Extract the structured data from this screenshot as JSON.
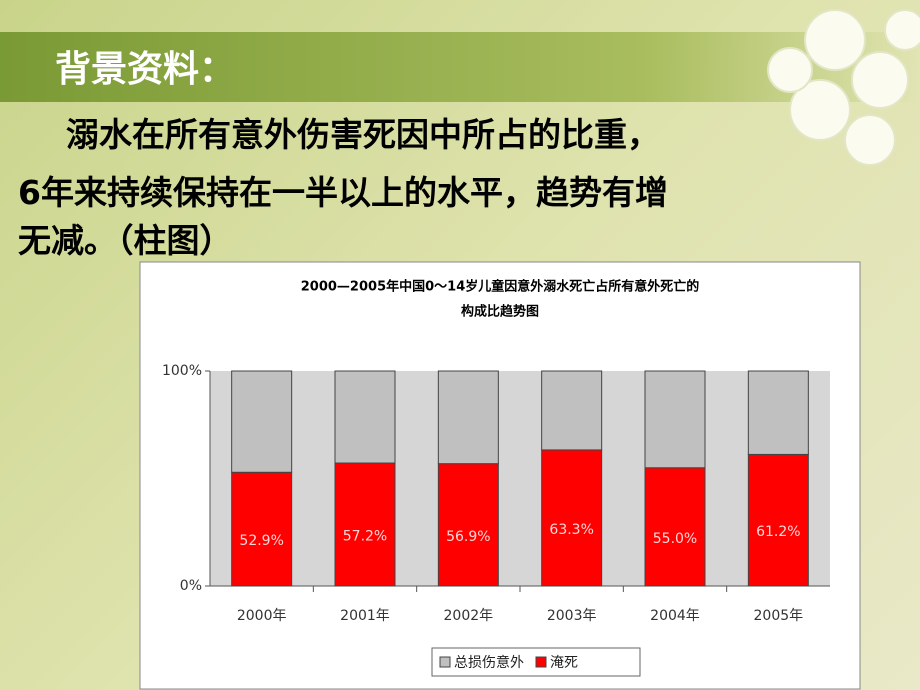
{
  "slide": {
    "heading": "背景资料：",
    "body": [
      "溺水在所有意外伤害死因中所占的比重，",
      "6年来持续保持在一半以上的水平，趋势有增",
      "无减。（柱图）"
    ]
  },
  "chart_data": {
    "type": "stacked-bar",
    "title": [
      "2000—2005年中国0～14岁儿童因意外溺水死亡占所有意外死亡的",
      "构成比趋势图"
    ],
    "categories": [
      "2000年",
      "2001年",
      "2002年",
      "2003年",
      "2004年",
      "2005年"
    ],
    "series": [
      {
        "name": "总损伤意外",
        "color": "#c0c0c0",
        "values": [
          47.1,
          42.8,
          43.1,
          36.7,
          45.0,
          38.8
        ]
      },
      {
        "name": "淹死",
        "color": "#ff0000",
        "values": [
          52.9,
          57.2,
          56.9,
          63.3,
          55.0,
          61.2
        ],
        "value_labels": [
          "52.9%",
          "57.2%",
          "56.9%",
          "63.3%",
          "55.0%",
          "61.2%"
        ]
      }
    ],
    "ylim": [
      0,
      100
    ],
    "yticks": [
      {
        "value": 0,
        "label": "0%"
      },
      {
        "value": 100,
        "label": "100%"
      }
    ],
    "grid": false
  }
}
